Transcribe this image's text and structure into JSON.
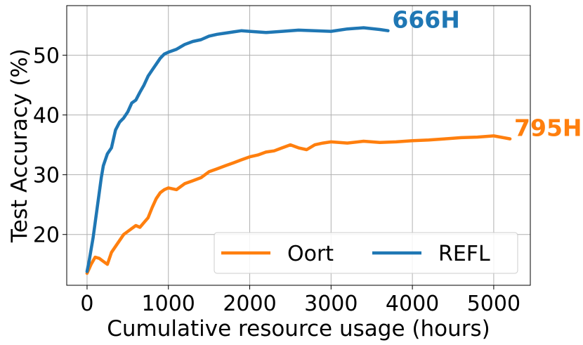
{
  "chart_data": {
    "type": "line",
    "title": "",
    "xlabel": "Cumulative resource usage (hours)",
    "ylabel": "Test Accuracy (%)",
    "xlim": [
      -250,
      5450
    ],
    "ylim": [
      11.5,
      58.3
    ],
    "xticks": [
      0,
      1000,
      2000,
      3000,
      4000,
      5000
    ],
    "yticks": [
      20,
      30,
      40,
      50
    ],
    "grid": true,
    "legend": {
      "placement": "lower-right",
      "columns": 2
    },
    "series": [
      {
        "name": "Oort",
        "color": "#ff7f0e",
        "end_label": "795H",
        "x": [
          0,
          50,
          100,
          150,
          200,
          250,
          300,
          350,
          400,
          450,
          500,
          550,
          600,
          650,
          700,
          750,
          800,
          850,
          900,
          950,
          1000,
          1100,
          1200,
          1300,
          1400,
          1500,
          1600,
          1700,
          1800,
          1900,
          2000,
          2100,
          2200,
          2300,
          2400,
          2500,
          2600,
          2700,
          2800,
          2900,
          3000,
          3200,
          3400,
          3600,
          3800,
          4000,
          4200,
          4400,
          4600,
          4800,
          5000,
          5200
        ],
        "y": [
          13.5,
          15.0,
          16.2,
          16.0,
          15.5,
          15.0,
          17.0,
          18.0,
          19.0,
          20.0,
          20.5,
          21.0,
          21.5,
          21.2,
          22.0,
          22.8,
          24.5,
          26.0,
          27.0,
          27.5,
          27.8,
          27.5,
          28.5,
          29.0,
          29.5,
          30.5,
          31.0,
          31.5,
          32.0,
          32.5,
          33.0,
          33.3,
          33.8,
          34.0,
          34.5,
          35.0,
          34.5,
          34.2,
          35.0,
          35.3,
          35.5,
          35.3,
          35.6,
          35.4,
          35.5,
          35.7,
          35.8,
          36.0,
          36.2,
          36.3,
          36.5,
          36.0
        ]
      },
      {
        "name": "REFL",
        "color": "#1f77b4",
        "end_label": "666H",
        "x": [
          0,
          25,
          50,
          75,
          100,
          125,
          150,
          175,
          200,
          250,
          300,
          350,
          400,
          450,
          500,
          550,
          600,
          650,
          700,
          750,
          800,
          850,
          900,
          950,
          1000,
          1100,
          1200,
          1300,
          1400,
          1500,
          1600,
          1700,
          1800,
          1900,
          2000,
          2200,
          2400,
          2600,
          2800,
          3000,
          3200,
          3400,
          3600,
          3700
        ],
        "y": [
          13.8,
          15.5,
          17.5,
          19.5,
          22.0,
          24.5,
          27.0,
          29.5,
          31.5,
          33.5,
          34.5,
          37.5,
          38.8,
          39.5,
          40.5,
          42.0,
          42.5,
          43.8,
          45.0,
          46.5,
          47.5,
          48.5,
          49.5,
          50.2,
          50.5,
          51.0,
          51.8,
          52.3,
          52.6,
          53.2,
          53.5,
          53.7,
          53.9,
          54.1,
          54.0,
          53.8,
          54.0,
          54.2,
          54.1,
          54.0,
          54.4,
          54.6,
          54.3,
          54.1
        ]
      }
    ]
  }
}
